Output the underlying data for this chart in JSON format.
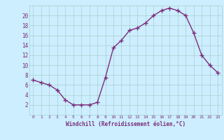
{
  "x": [
    0,
    1,
    2,
    3,
    4,
    5,
    6,
    7,
    8,
    9,
    10,
    11,
    12,
    13,
    14,
    15,
    16,
    17,
    18,
    19,
    20,
    21,
    22,
    23
  ],
  "y": [
    7,
    6.5,
    6,
    5,
    3,
    2,
    2,
    2,
    2.5,
    7.5,
    13.5,
    15,
    17,
    17.5,
    18.5,
    20,
    21,
    21.5,
    21,
    20,
    16.5,
    12,
    10,
    8.5
  ],
  "line_color": "#7b2d7b",
  "marker_color": "#7b2d7b",
  "bg_color": "#cceeff",
  "grid_color": "#aacfcf",
  "xlabel": "Windchill (Refroidissement éolien,°C)",
  "xlabel_color": "#7b2d7b",
  "tick_color": "#7b2d7b",
  "ylim": [
    0,
    22
  ],
  "xlim": [
    -0.5,
    23.5
  ],
  "yticks": [
    2,
    4,
    6,
    8,
    10,
    12,
    14,
    16,
    18,
    20
  ],
  "xticks": [
    0,
    1,
    2,
    3,
    4,
    5,
    6,
    7,
    8,
    9,
    10,
    11,
    12,
    13,
    14,
    15,
    16,
    17,
    18,
    19,
    20,
    21,
    22,
    23
  ]
}
